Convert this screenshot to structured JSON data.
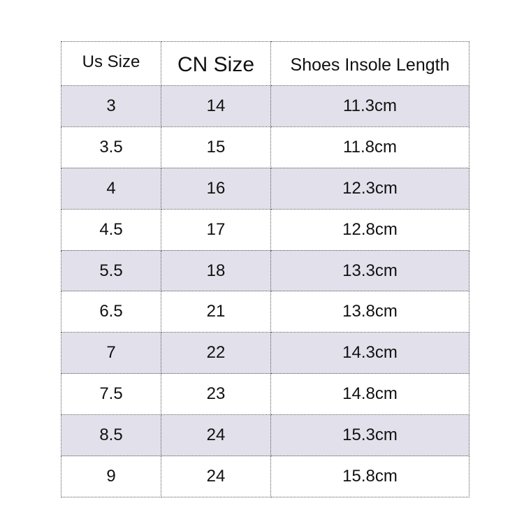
{
  "table": {
    "headers": [
      "Us Size",
      "CN Size",
      "Shoes Insole Length"
    ],
    "rows": [
      [
        "3",
        "14",
        "11.3cm"
      ],
      [
        "3.5",
        "15",
        "11.8cm"
      ],
      [
        "4",
        "16",
        "12.3cm"
      ],
      [
        "4.5",
        "17",
        "12.8cm"
      ],
      [
        "5.5",
        "18",
        "13.3cm"
      ],
      [
        "6.5",
        "21",
        "13.8cm"
      ],
      [
        "7",
        "22",
        "14.3cm"
      ],
      [
        "7.5",
        "23",
        "14.8cm"
      ],
      [
        "8.5",
        "24",
        "15.3cm"
      ],
      [
        "9",
        "24",
        "15.8cm"
      ]
    ],
    "shade_color": "#e2e0ea"
  }
}
